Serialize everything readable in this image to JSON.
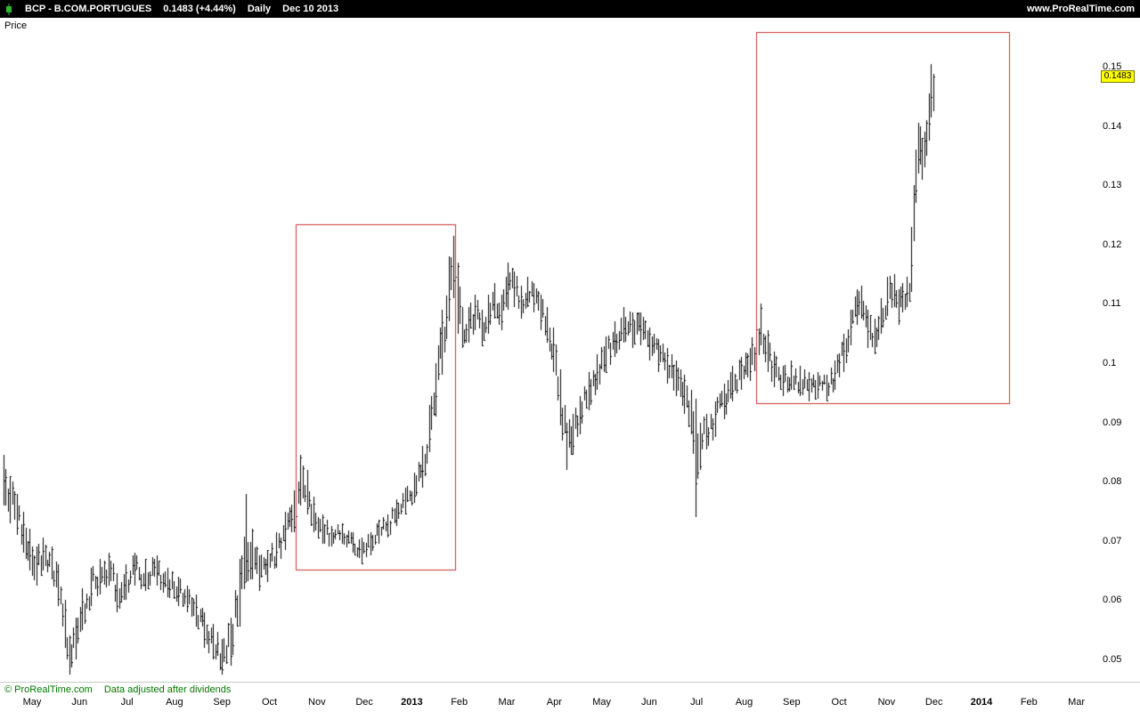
{
  "header": {
    "symbol": "BCP - B.COM.PORTUGUES",
    "quote": "0.1483 (+4.44%)",
    "timeframe": "Daily",
    "date": "Dec 10 2013",
    "site": "www.ProRealTime.com",
    "icon_color": "#2db82d"
  },
  "price_axis_title": "Price",
  "footer": {
    "copyright": "© ProRealTime.com",
    "note": "Data adjusted after dividends",
    "color": "#007700"
  },
  "last_price_tag": {
    "label": "0.1483",
    "value": 0.1483,
    "bg": "#ffff00"
  },
  "chart_data": {
    "type": "bar",
    "title": "BCP - B.COM.PORTUGUES, Daily OHLC bar chart, May 2012 - Dec 10 2013",
    "ylabel": "Price",
    "ylim": [
      0.045,
      0.158
    ],
    "grid": false,
    "legend": "none",
    "bar_color": "#000000",
    "annotation_color": "#cc3333",
    "last_close": 0.1483,
    "yticks": [
      {
        "v": 0.15,
        "label": "0.15"
      },
      {
        "v": 0.14,
        "label": "0.14"
      },
      {
        "v": 0.13,
        "label": "0.13"
      },
      {
        "v": 0.12,
        "label": "0.12"
      },
      {
        "v": 0.11,
        "label": "0.11"
      },
      {
        "v": 0.1,
        "label": "0.1"
      },
      {
        "v": 0.09,
        "label": "0.09"
      },
      {
        "v": 0.08,
        "label": "0.08"
      },
      {
        "v": 0.07,
        "label": "0.07"
      },
      {
        "v": 0.06,
        "label": "0.06"
      },
      {
        "v": 0.05,
        "label": "0.05"
      }
    ],
    "months": [
      {
        "label": "May",
        "bold": false
      },
      {
        "label": "Jun",
        "bold": false
      },
      {
        "label": "Jul",
        "bold": false
      },
      {
        "label": "Aug",
        "bold": false
      },
      {
        "label": "Sep",
        "bold": false
      },
      {
        "label": "Oct",
        "bold": false
      },
      {
        "label": "Nov",
        "bold": false
      },
      {
        "label": "Dec",
        "bold": false
      },
      {
        "label": "2013",
        "bold": true
      },
      {
        "label": "Feb",
        "bold": false
      },
      {
        "label": "Mar",
        "bold": false
      },
      {
        "label": "Apr",
        "bold": false
      },
      {
        "label": "May",
        "bold": false
      },
      {
        "label": "Jun",
        "bold": false
      },
      {
        "label": "Jul",
        "bold": false
      },
      {
        "label": "Aug",
        "bold": false
      },
      {
        "label": "Sep",
        "bold": false
      },
      {
        "label": "Oct",
        "bold": false
      },
      {
        "label": "Nov",
        "bold": false
      },
      {
        "label": "Dec",
        "bold": false
      },
      {
        "label": "2014",
        "bold": true
      },
      {
        "label": "Feb",
        "bold": false
      },
      {
        "label": "Mar",
        "bold": false
      }
    ],
    "keypoints": [
      [
        0,
        0.076,
        0.0845
      ],
      [
        3,
        0.073,
        0.081
      ],
      [
        6,
        0.071,
        0.078
      ],
      [
        9,
        0.068,
        0.075
      ],
      [
        12,
        0.065,
        0.072
      ],
      [
        15,
        0.0625,
        0.069
      ],
      [
        18,
        0.065,
        0.0705
      ],
      [
        22,
        0.0635,
        0.069
      ],
      [
        25,
        0.059,
        0.066
      ],
      [
        28,
        0.052,
        0.06
      ],
      [
        30,
        0.0475,
        0.054
      ],
      [
        33,
        0.05,
        0.057
      ],
      [
        36,
        0.055,
        0.062
      ],
      [
        40,
        0.059,
        0.0655
      ],
      [
        44,
        0.061,
        0.067
      ],
      [
        48,
        0.0625,
        0.068
      ],
      [
        52,
        0.058,
        0.0645
      ],
      [
        56,
        0.06,
        0.066
      ],
      [
        60,
        0.0625,
        0.068
      ],
      [
        65,
        0.0615,
        0.067
      ],
      [
        70,
        0.0625,
        0.0675
      ],
      [
        75,
        0.0605,
        0.0655
      ],
      [
        80,
        0.059,
        0.064
      ],
      [
        84,
        0.058,
        0.0625
      ],
      [
        88,
        0.0555,
        0.061
      ],
      [
        92,
        0.052,
        0.058
      ],
      [
        96,
        0.05,
        0.056
      ],
      [
        100,
        0.0475,
        0.0535
      ],
      [
        104,
        0.049,
        0.057
      ],
      [
        108,
        0.0555,
        0.067
      ],
      [
        111,
        0.063,
        0.078
      ],
      [
        114,
        0.0635,
        0.072
      ],
      [
        117,
        0.0615,
        0.0675
      ],
      [
        121,
        0.063,
        0.0685
      ],
      [
        125,
        0.0655,
        0.0715
      ],
      [
        129,
        0.0685,
        0.075
      ],
      [
        133,
        0.0715,
        0.0785
      ],
      [
        136,
        0.076,
        0.0845
      ],
      [
        139,
        0.0745,
        0.082
      ],
      [
        142,
        0.0715,
        0.0775
      ],
      [
        146,
        0.0695,
        0.0745
      ],
      [
        150,
        0.069,
        0.0725
      ],
      [
        155,
        0.0695,
        0.073
      ],
      [
        160,
        0.068,
        0.0715
      ],
      [
        164,
        0.066,
        0.0705
      ],
      [
        168,
        0.0675,
        0.0715
      ],
      [
        172,
        0.0695,
        0.0735
      ],
      [
        176,
        0.0705,
        0.0745
      ],
      [
        180,
        0.0725,
        0.077
      ],
      [
        184,
        0.0745,
        0.079
      ],
      [
        188,
        0.0765,
        0.0815
      ],
      [
        192,
        0.079,
        0.086
      ],
      [
        195,
        0.085,
        0.093
      ],
      [
        198,
        0.091,
        0.1
      ],
      [
        201,
        0.098,
        0.109
      ],
      [
        204,
        0.107,
        0.118
      ],
      [
        206,
        0.111,
        0.1215
      ],
      [
        208,
        0.105,
        0.117
      ],
      [
        210,
        0.1025,
        0.1095
      ],
      [
        213,
        0.1035,
        0.1095
      ],
      [
        216,
        0.1055,
        0.1115
      ],
      [
        219,
        0.103,
        0.109
      ],
      [
        222,
        0.105,
        0.1115
      ],
      [
        225,
        0.1075,
        0.1135
      ],
      [
        228,
        0.1055,
        0.1115
      ],
      [
        231,
        0.109,
        0.117
      ],
      [
        234,
        0.1095,
        0.1155
      ],
      [
        237,
        0.1075,
        0.113
      ],
      [
        240,
        0.1095,
        0.1145
      ],
      [
        243,
        0.1085,
        0.1135
      ],
      [
        246,
        0.1055,
        0.1115
      ],
      [
        249,
        0.1035,
        0.1095
      ],
      [
        252,
        0.0985,
        0.106
      ],
      [
        255,
        0.0895,
        0.099
      ],
      [
        258,
        0.082,
        0.09
      ],
      [
        261,
        0.0845,
        0.0915
      ],
      [
        264,
        0.088,
        0.0945
      ],
      [
        268,
        0.092,
        0.0985
      ],
      [
        272,
        0.0955,
        0.1015
      ],
      [
        276,
        0.0985,
        0.1045
      ],
      [
        280,
        0.101,
        0.107
      ],
      [
        284,
        0.1035,
        0.1095
      ],
      [
        288,
        0.1025,
        0.1085
      ],
      [
        292,
        0.103,
        0.1085
      ],
      [
        296,
        0.1005,
        0.106
      ],
      [
        300,
        0.0985,
        0.104
      ],
      [
        304,
        0.0965,
        0.1025
      ],
      [
        308,
        0.0945,
        0.1005
      ],
      [
        312,
        0.0915,
        0.098
      ],
      [
        315,
        0.088,
        0.0955
      ],
      [
        317,
        0.074,
        0.094
      ],
      [
        319,
        0.082,
        0.09
      ],
      [
        322,
        0.0855,
        0.0915
      ],
      [
        326,
        0.0875,
        0.0935
      ],
      [
        330,
        0.0905,
        0.0965
      ],
      [
        334,
        0.0935,
        0.0995
      ],
      [
        338,
        0.0955,
        0.101
      ],
      [
        342,
        0.097,
        0.1025
      ],
      [
        345,
        0.0995,
        0.1105
      ],
      [
        347,
        0.103,
        0.11
      ],
      [
        350,
        0.0985,
        0.1055
      ],
      [
        353,
        0.096,
        0.102
      ],
      [
        357,
        0.0945,
        0.0995
      ],
      [
        361,
        0.0955,
        0.1005
      ],
      [
        365,
        0.0945,
        0.0995
      ],
      [
        369,
        0.0935,
        0.0985
      ],
      [
        373,
        0.094,
        0.0985
      ],
      [
        377,
        0.0935,
        0.098
      ],
      [
        381,
        0.0955,
        0.1005
      ],
      [
        385,
        0.0985,
        0.105
      ],
      [
        388,
        0.103,
        0.109
      ],
      [
        391,
        0.1065,
        0.1125
      ],
      [
        393,
        0.1075,
        0.113
      ],
      [
        396,
        0.1025,
        0.109
      ],
      [
        399,
        0.1015,
        0.1075
      ],
      [
        402,
        0.105,
        0.111
      ],
      [
        405,
        0.108,
        0.1145
      ],
      [
        408,
        0.1095,
        0.115
      ],
      [
        410,
        0.1065,
        0.1125
      ],
      [
        412,
        0.1085,
        0.1135
      ],
      [
        414,
        0.1095,
        0.1145
      ],
      [
        415,
        0.1105,
        0.1135
      ],
      [
        416,
        0.112,
        0.123
      ],
      [
        417,
        0.1205,
        0.13
      ],
      [
        418,
        0.127,
        0.136
      ],
      [
        419,
        0.132,
        0.1405
      ],
      [
        420,
        0.1335,
        0.14
      ],
      [
        421,
        0.131,
        0.138
      ],
      [
        422,
        0.133,
        0.139
      ],
      [
        423,
        0.135,
        0.141
      ],
      [
        424,
        0.1375,
        0.1455
      ],
      [
        425,
        0.1415,
        0.1505
      ],
      [
        426,
        0.1425,
        0.1488
      ]
    ],
    "annotations": [
      {
        "type": "rect",
        "d1": 134,
        "d2": 207,
        "p1": 0.0652,
        "p2": 0.1234
      },
      {
        "type": "rect",
        "d1": 345,
        "d2": 461,
        "p1": 0.0933,
        "p2": 0.1559
      }
    ]
  }
}
